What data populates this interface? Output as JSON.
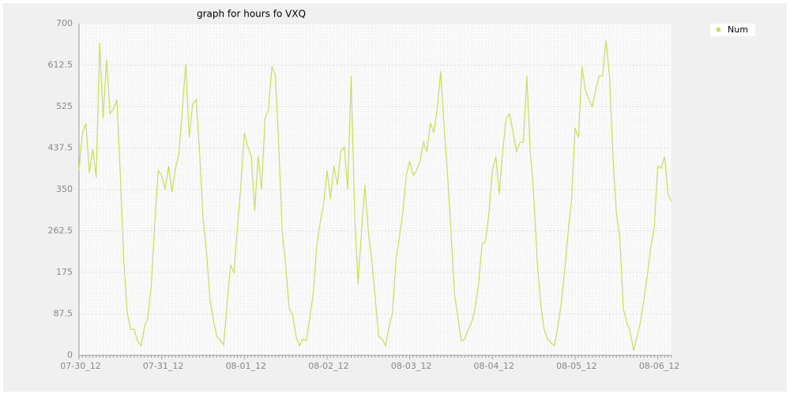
{
  "chart_data": {
    "type": "line",
    "title": "graph for hours fo VXQ",
    "categories": [
      "07-30_12",
      null,
      null,
      null,
      null,
      null,
      null,
      null,
      null,
      null,
      null,
      null,
      null,
      null,
      null,
      null,
      null,
      null,
      null,
      null,
      null,
      null,
      null,
      null,
      "07-31_12",
      null,
      null,
      null,
      null,
      null,
      null,
      null,
      null,
      null,
      null,
      null,
      null,
      null,
      null,
      null,
      null,
      null,
      null,
      null,
      null,
      null,
      null,
      null,
      "08-01_12",
      null,
      null,
      null,
      null,
      null,
      null,
      null,
      null,
      null,
      null,
      null,
      null,
      null,
      null,
      null,
      null,
      null,
      null,
      null,
      null,
      null,
      null,
      null,
      "08-02_12",
      null,
      null,
      null,
      null,
      null,
      null,
      null,
      null,
      null,
      null,
      null,
      null,
      null,
      null,
      null,
      null,
      null,
      null,
      null,
      null,
      null,
      null,
      null,
      "08-03_12",
      null,
      null,
      null,
      null,
      null,
      null,
      null,
      null,
      null,
      null,
      null,
      null,
      null,
      null,
      null,
      null,
      null,
      null,
      null,
      null,
      null,
      null,
      null,
      "08-04_12",
      null,
      null,
      null,
      null,
      null,
      null,
      null,
      null,
      null,
      null,
      null,
      null,
      null,
      null,
      null,
      null,
      null,
      null,
      null,
      null,
      null,
      null,
      null,
      "08-05_12",
      null,
      null,
      null,
      null,
      null,
      null,
      null,
      null,
      null,
      null,
      null,
      null,
      null,
      null,
      null,
      null,
      null,
      null,
      null,
      null,
      null,
      null,
      null,
      "08-06_12",
      null,
      null,
      null,
      null
    ],
    "series": [
      {
        "name": "Num",
        "color": "#c4e05a",
        "values": [
          390,
          470,
          490,
          385,
          435,
          375,
          660,
          500,
          625,
          510,
          520,
          540,
          380,
          200,
          90,
          55,
          55,
          30,
          20,
          60,
          80,
          150,
          280,
          390,
          380,
          350,
          400,
          345,
          395,
          425,
          520,
          615,
          460,
          530,
          540,
          430,
          290,
          220,
          120,
          75,
          40,
          32,
          22,
          110,
          190,
          175,
          270,
          360,
          470,
          440,
          420,
          305,
          420,
          350,
          500,
          520,
          610,
          590,
          440,
          260,
          190,
          100,
          85,
          40,
          20,
          35,
          30,
          80,
          130,
          230,
          280,
          320,
          390,
          330,
          400,
          360,
          430,
          440,
          350,
          590,
          300,
          150,
          260,
          360,
          260,
          200,
          120,
          40,
          35,
          20,
          60,
          90,
          200,
          250,
          300,
          380,
          410,
          380,
          390,
          410,
          450,
          430,
          490,
          470,
          520,
          600,
          480,
          380,
          260,
          130,
          80,
          30,
          35,
          55,
          70,
          100,
          150,
          235,
          240,
          300,
          390,
          420,
          340,
          430,
          500,
          510,
          470,
          430,
          450,
          450,
          590,
          430,
          340,
          200,
          110,
          55,
          35,
          27,
          20,
          60,
          110,
          180,
          260,
          330,
          480,
          460,
          610,
          560,
          540,
          525,
          560,
          590,
          590,
          665,
          590,
          420,
          300,
          250,
          100,
          70,
          50,
          10,
          40,
          70,
          120,
          170,
          230,
          270,
          400,
          395,
          420,
          340,
          325
        ]
      }
    ],
    "ylim": [
      0,
      700
    ],
    "yticks": [
      0,
      87.5,
      175,
      262.5,
      350,
      437.5,
      525,
      612.5,
      700
    ],
    "grid": true,
    "legend": "top-right"
  }
}
